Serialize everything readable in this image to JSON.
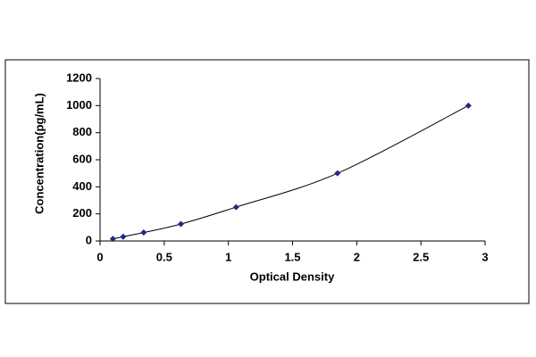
{
  "chart_data": {
    "type": "scatter",
    "x_label": "Optical Density",
    "y_label": "Concentration(pg/mL)",
    "x": [
      0.1,
      0.18,
      0.34,
      0.63,
      1.06,
      1.85,
      2.87
    ],
    "values": [
      15.6,
      31.25,
      62.5,
      125,
      250,
      500,
      1000
    ],
    "color": "#1f2a80",
    "line_color": "#000000",
    "connect": true,
    "marker": "diamond",
    "xlim": [
      0,
      3
    ],
    "xticks": [
      0,
      0.5,
      1,
      1.5,
      2,
      2.5,
      3
    ],
    "ylim": [
      0,
      1200
    ],
    "yticks": [
      0,
      200,
      400,
      600,
      800,
      1000,
      1200
    ],
    "grid": false
  }
}
